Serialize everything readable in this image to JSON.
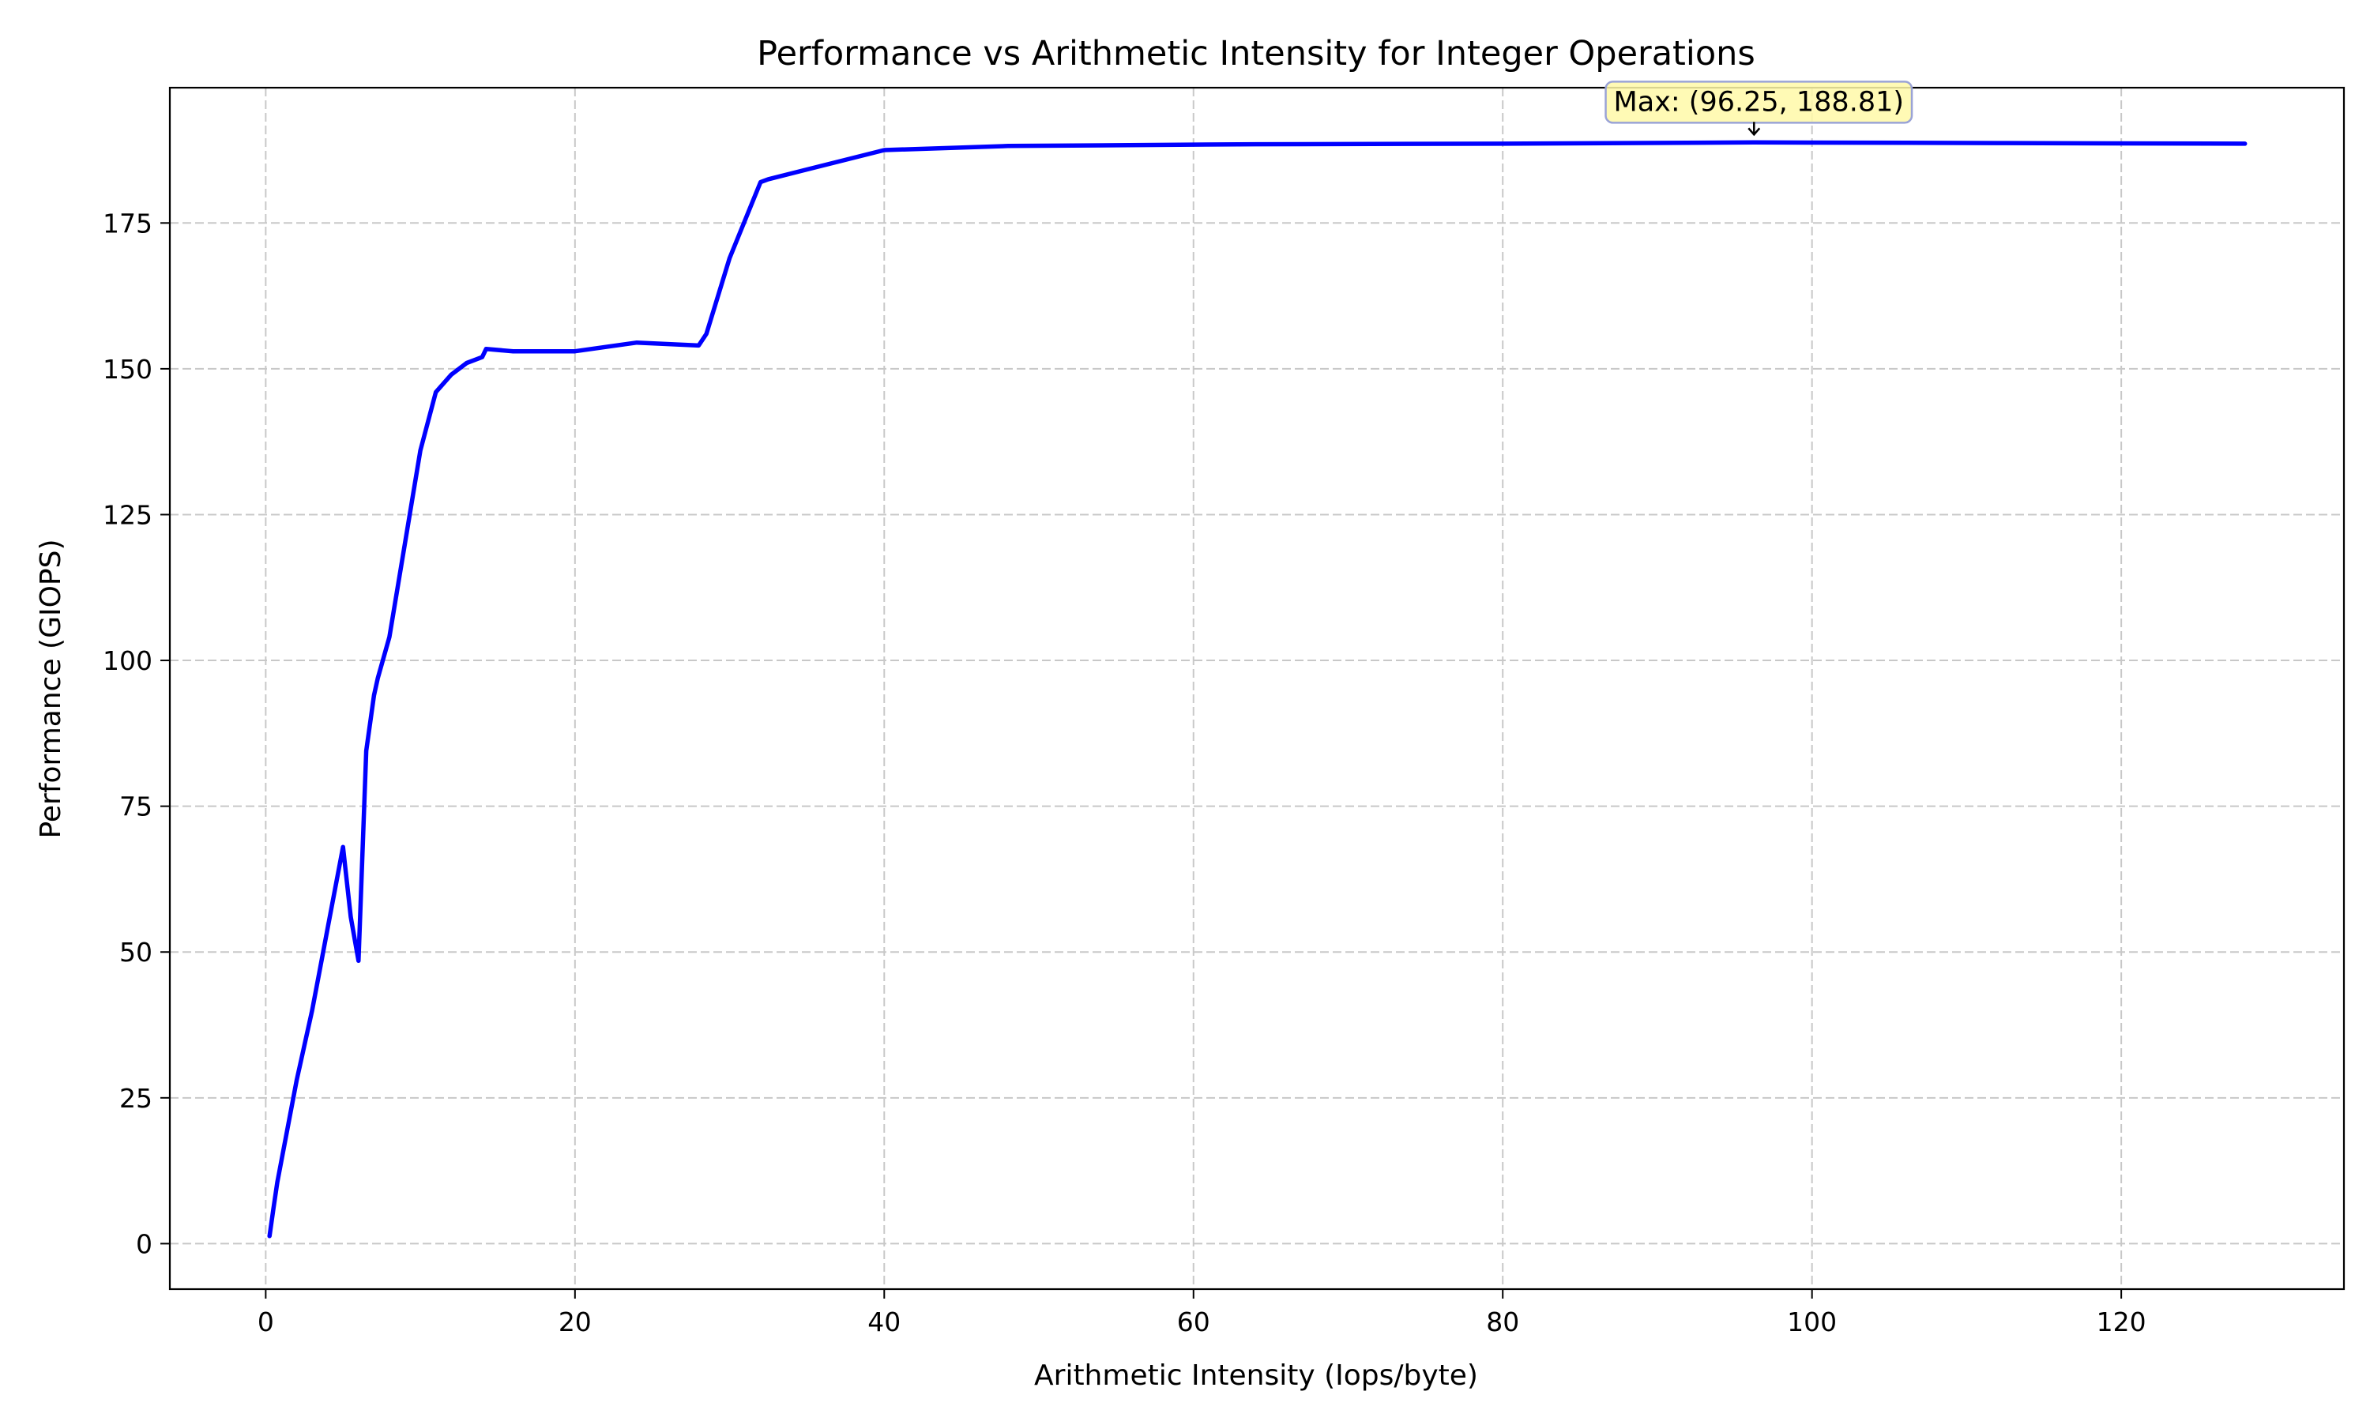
{
  "chart_data": {
    "type": "line",
    "title": "Performance vs Arithmetic Intensity for Integer Operations",
    "xlabel": "Arithmetic Intensity (Iops/byte)",
    "ylabel": "Performance (GIOPS)",
    "xlim": [
      -6.2,
      134.4
    ],
    "ylim": [
      -7.8,
      198.2
    ],
    "xticks": [
      0,
      20,
      40,
      60,
      80,
      100,
      120
    ],
    "yticks": [
      0,
      25,
      50,
      75,
      100,
      125,
      150,
      175
    ],
    "grid": true,
    "line_color": "#0000ff",
    "series": [
      {
        "x": [
          0.25,
          0.5,
          0.75,
          1.0,
          1.5,
          2.0,
          2.5,
          3.0,
          3.5,
          4.0,
          4.5,
          5.0,
          5.5,
          6.0,
          6.5,
          7.0,
          7.25,
          8.0,
          9.0,
          10.0,
          11.0,
          12.0,
          13.0,
          14.0,
          14.25,
          16.0,
          20.0,
          24.0,
          28.0,
          28.5,
          30.0,
          32.0,
          32.5,
          40.0,
          48.0,
          64.0,
          80.0,
          96.25,
          112.0,
          128.0
        ],
        "y": [
          1.3,
          6.0,
          10.5,
          14.0,
          21.0,
          28.0,
          34.0,
          40.0,
          47.0,
          54.0,
          61.0,
          68.0,
          56.0,
          48.5,
          84.5,
          94.0,
          97.0,
          104.0,
          120.0,
          136.0,
          146.0,
          149.0,
          151.0,
          152.0,
          153.4,
          153.0,
          153.0,
          154.5,
          154.0,
          156.0,
          169.0,
          182.0,
          182.5,
          187.5,
          188.2,
          188.5,
          188.6,
          188.81,
          188.7,
          188.6
        ]
      }
    ],
    "annotation": {
      "text": "Max: (96.25, 188.81)",
      "x": 96.25,
      "y": 188.81,
      "box_fill": "#fff9a8",
      "box_edge": "#9aa3d6"
    }
  }
}
